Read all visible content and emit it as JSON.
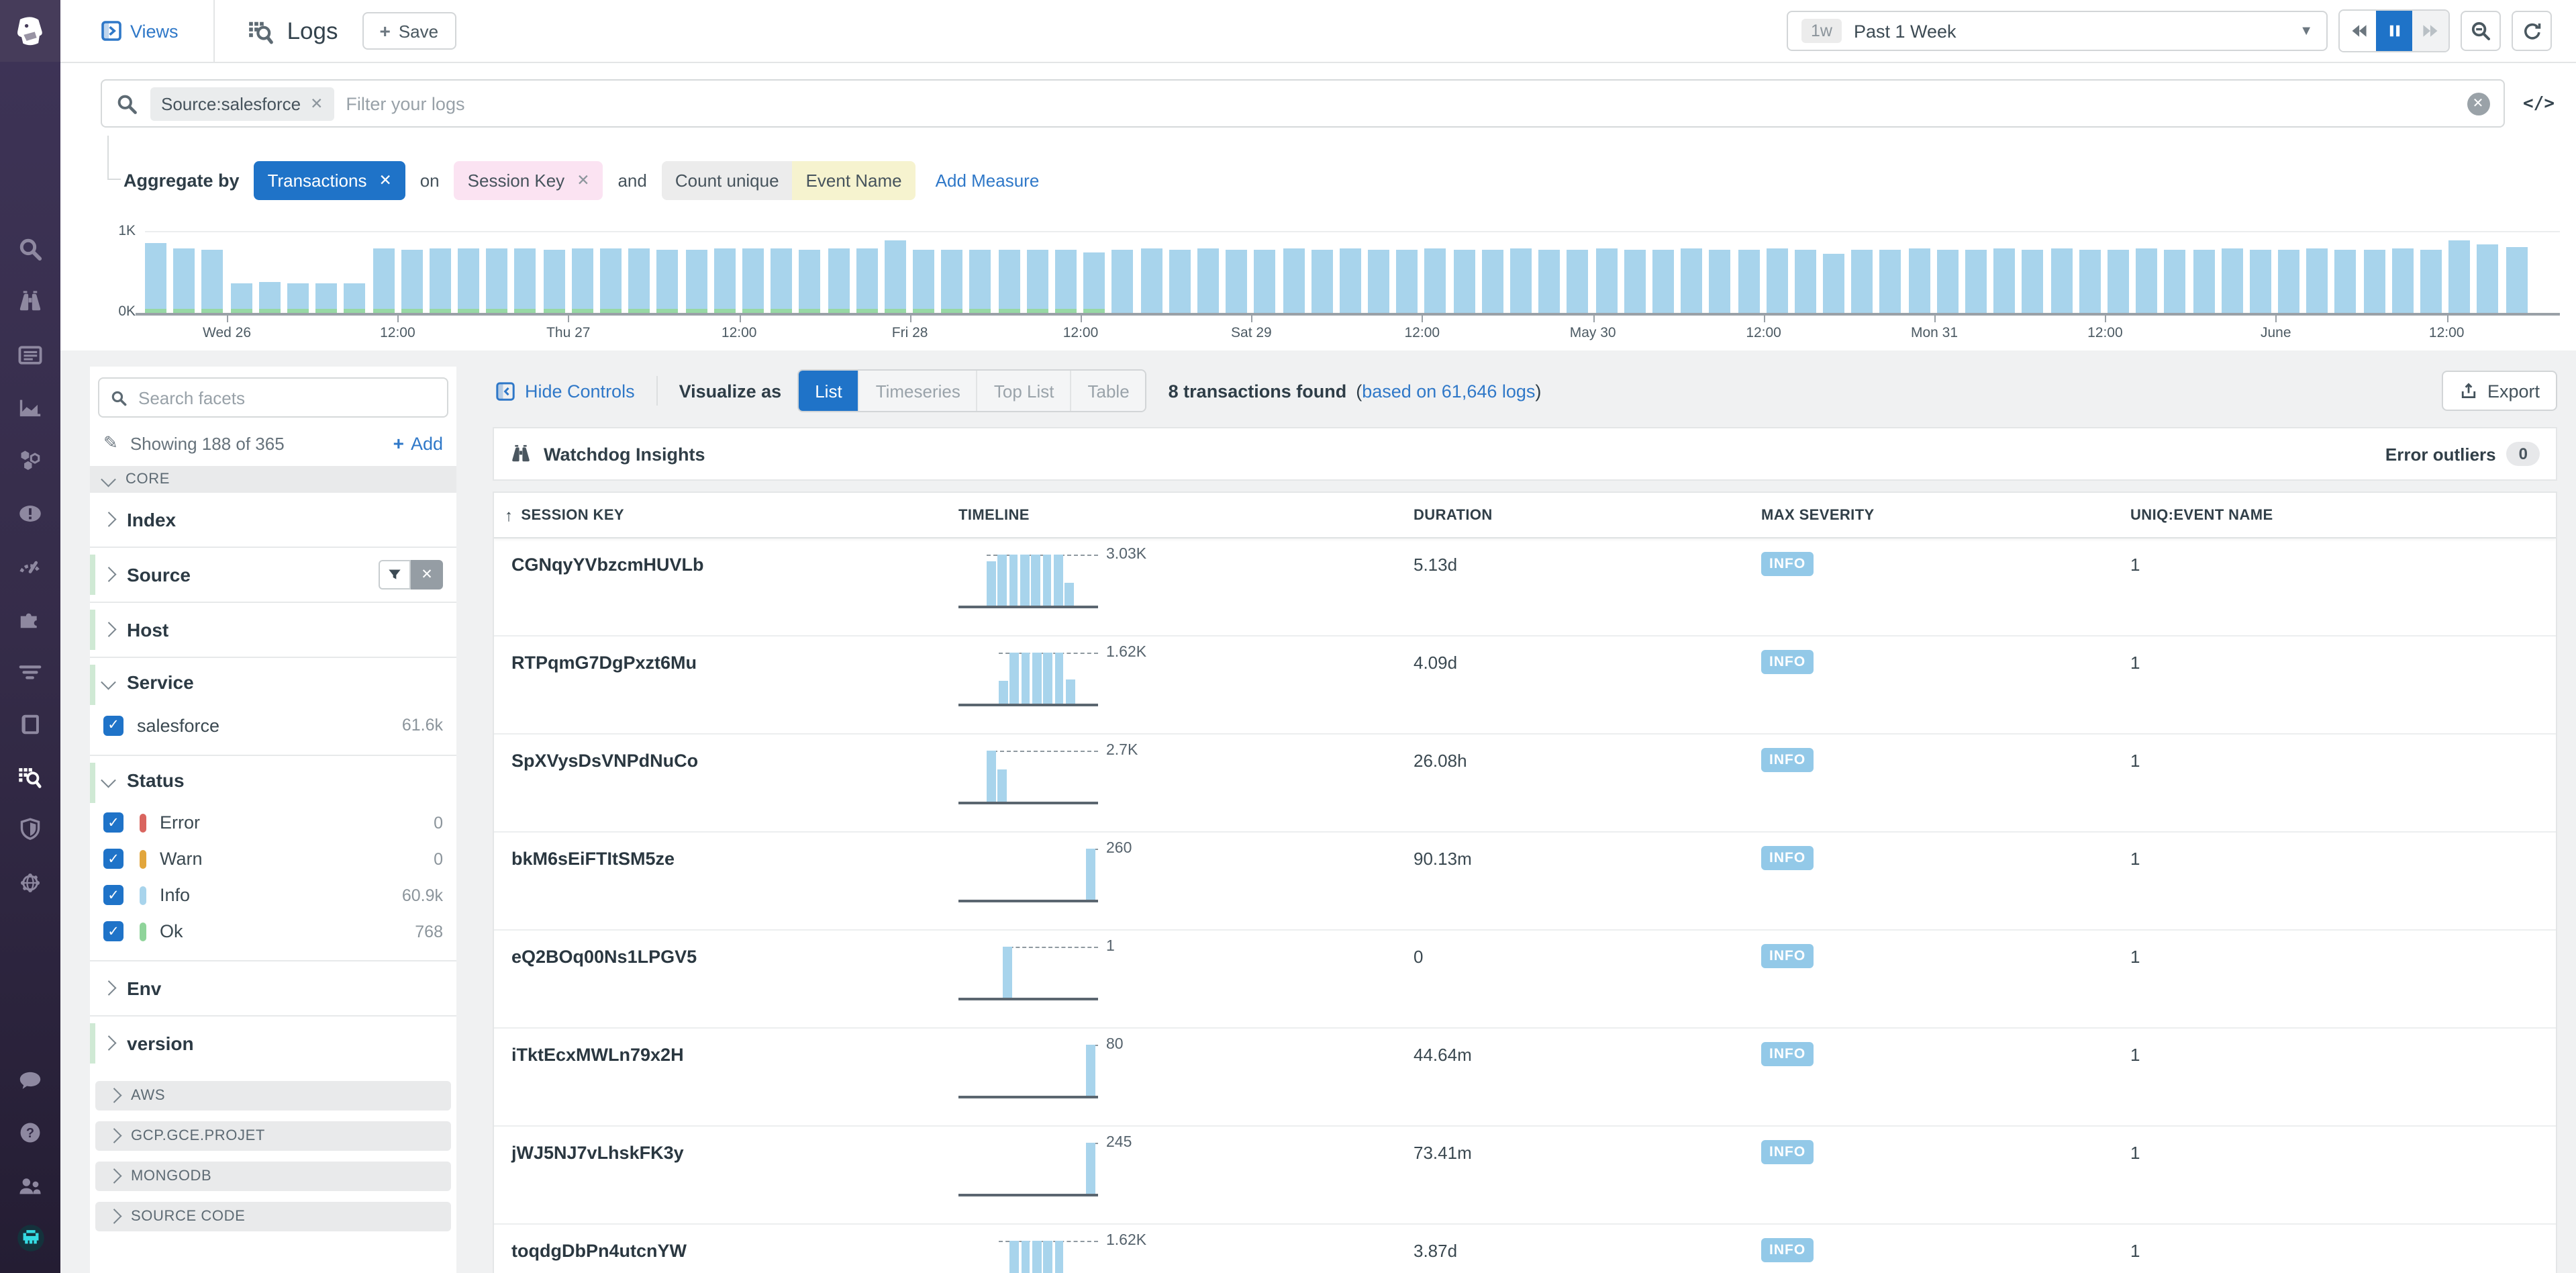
{
  "colors": {
    "accent_blue": "#1f73c8",
    "link_blue": "#2f78c8",
    "bar_blue": "#a8d4ec",
    "ok_green": "#97d8a4",
    "error_red": "#d9655f",
    "warn_orange": "#e2a63c",
    "info_blue": "#a8d4ec",
    "ok_swatch": "#8fd49a",
    "info_badge": "#93c9e8"
  },
  "nav": {
    "top_icons": [
      "search",
      "watchdog",
      "dashboards",
      "metrics",
      "service-map",
      "events",
      "synthetics",
      "integrations",
      "apm-traces",
      "notebooks",
      "logs",
      "security",
      "network"
    ],
    "active": "logs",
    "bottom_icons": [
      "chat",
      "help",
      "users",
      "avatar"
    ]
  },
  "header": {
    "views_label": "Views",
    "page_title": "Logs",
    "save_label": "Save",
    "time_range": {
      "shortcut": "1w",
      "label": "Past 1 Week"
    }
  },
  "search_bar": {
    "filter_chip": "Source:salesforce",
    "placeholder": "Filter your logs"
  },
  "aggregate_row": {
    "label": "Aggregate by",
    "group": "Transactions",
    "on": "on",
    "field": "Session Key",
    "and": "and",
    "measure_toggle": [
      "Count unique",
      "Event Name"
    ],
    "add_measure": "Add Measure"
  },
  "chart_data": {
    "type": "bar",
    "title": "Log volume over past 1 week",
    "ylabel": "",
    "ylim": [
      0,
      1000
    ],
    "ytick_labels": [
      "0K",
      "1K"
    ],
    "x_tick_labels": [
      "Wed 26",
      "12:00",
      "Thu 27",
      "12:00",
      "Fri 28",
      "12:00",
      "Sat 29",
      "12:00",
      "May 30",
      "12:00",
      "Mon 31",
      "12:00",
      "June",
      "12:00"
    ],
    "first_tick_bar_index": 3,
    "tick_every_n_bars": 6,
    "ok_base_until_index": 33,
    "values": [
      850,
      780,
      765,
      360,
      375,
      355,
      355,
      360,
      780,
      778,
      785,
      782,
      790,
      780,
      776,
      780,
      780,
      782,
      778,
      775,
      785,
      780,
      783,
      778,
      780,
      782,
      880,
      775,
      778,
      774,
      776,
      772,
      775,
      745,
      778,
      780,
      776,
      782,
      779,
      775,
      780,
      778,
      781,
      776,
      779,
      782,
      778,
      775,
      780,
      778,
      776,
      781,
      779,
      777,
      780,
      778,
      775,
      782,
      778,
      730,
      779,
      776,
      781,
      778,
      775,
      780,
      777,
      782,
      778,
      776,
      780,
      778,
      775,
      781,
      778,
      776,
      782,
      779,
      777,
      780,
      778,
      890,
      835,
      800
    ]
  },
  "facet_panel": {
    "search_placeholder": "Search facets",
    "showing_text": "Showing 188 of 365",
    "add_label": "Add",
    "groups": [
      {
        "kind": "header",
        "label": "CORE",
        "chevron": "down"
      },
      {
        "kind": "facet",
        "label": "Index",
        "pinned": false
      },
      {
        "kind": "facet",
        "label": "Source",
        "pinned": true,
        "has_controls": true
      },
      {
        "kind": "facet",
        "label": "Host",
        "pinned": true
      },
      {
        "kind": "facet",
        "label": "Service",
        "pinned": true,
        "expanded": true,
        "items": [
          {
            "label": "salesforce",
            "count": "61.6k",
            "checked": true
          }
        ]
      },
      {
        "kind": "facet",
        "label": "Status",
        "pinned": true,
        "expanded": true,
        "items": [
          {
            "label": "Error",
            "count": "0",
            "checked": true,
            "swatch": "#d9655f"
          },
          {
            "label": "Warn",
            "count": "0",
            "checked": true,
            "swatch": "#e2a63c"
          },
          {
            "label": "Info",
            "count": "60.9k",
            "checked": true,
            "swatch": "#a8d4ec"
          },
          {
            "label": "Ok",
            "count": "768",
            "checked": true,
            "swatch": "#8fd49a"
          }
        ]
      },
      {
        "kind": "facet",
        "label": "Env",
        "pinned": false
      },
      {
        "kind": "facet",
        "label": "version",
        "pinned": true
      },
      {
        "kind": "header",
        "label": "AWS",
        "chevron": "right",
        "spaced": true
      },
      {
        "kind": "header",
        "label": "GCP.GCE.PROJET",
        "chevron": "right",
        "spaced": true
      },
      {
        "kind": "header",
        "label": "MONGODB",
        "chevron": "right",
        "spaced": true
      },
      {
        "kind": "header",
        "label": "SOURCE CODE",
        "chevron": "right",
        "spaced": true
      }
    ]
  },
  "controls": {
    "hide_controls": "Hide Controls",
    "visualize_as": "Visualize as",
    "modes": [
      "List",
      "Timeseries",
      "Top List",
      "Table"
    ],
    "active_mode": "List",
    "result_count": "8 transactions found",
    "based_prefix": "(",
    "based_link": "based on 61,646 logs",
    "based_suffix": ")",
    "export_label": "Export"
  },
  "watchdog": {
    "title": "Watchdog Insights",
    "right_label": "Error outliers",
    "right_count": "0"
  },
  "table": {
    "columns": [
      "SESSION KEY",
      "TIMELINE",
      "DURATION",
      "MAX SEVERITY",
      "UNIQ:EVENT NAME"
    ],
    "sort_column": "SESSION KEY",
    "rows": [
      {
        "key": "CGNqyYVbzcmHUVLb",
        "timeline": {
          "value": "3.03K",
          "offset": 21,
          "bars": [
            0.86,
            1,
            1,
            1,
            1,
            1,
            1,
            0.45
          ]
        },
        "duration": "5.13d",
        "max_severity": "INFO",
        "uniq_event_name": "1"
      },
      {
        "key": "RTPqmG7DgPxzt6Mu",
        "timeline": {
          "value": "1.62K",
          "offset": 30,
          "bars": [
            0.45,
            1,
            1,
            1,
            1,
            1,
            0.48
          ]
        },
        "duration": "4.09d",
        "max_severity": "INFO",
        "uniq_event_name": "1"
      },
      {
        "key": "SpXVysDsVNPdNuCo",
        "timeline": {
          "value": "2.7K",
          "offset": 21,
          "bars": [
            1,
            0.62
          ]
        },
        "duration": "26.08h",
        "max_severity": "INFO",
        "uniq_event_name": "1"
      },
      {
        "key": "bkM6sEiFTItSM5ze",
        "timeline": {
          "value": "260",
          "offset": 95,
          "bars": [
            1
          ]
        },
        "duration": "90.13m",
        "max_severity": "INFO",
        "uniq_event_name": "1"
      },
      {
        "key": "eQ2BOq00Ns1LPGV5",
        "timeline": {
          "value": "1",
          "offset": 33,
          "bars": [
            1
          ]
        },
        "duration": "0",
        "max_severity": "INFO",
        "uniq_event_name": "1"
      },
      {
        "key": "iTktEcxMWLn79x2H",
        "timeline": {
          "value": "80",
          "offset": 95,
          "bars": [
            1
          ]
        },
        "duration": "44.64m",
        "max_severity": "INFO",
        "uniq_event_name": "1"
      },
      {
        "key": "jWJ5NJ7vLhskFK3y",
        "timeline": {
          "value": "245",
          "offset": 95,
          "bars": [
            1
          ]
        },
        "duration": "73.41m",
        "max_severity": "INFO",
        "uniq_event_name": "1"
      },
      {
        "key": "toqdgDbPn4utcnYW",
        "timeline": {
          "value": "1.62K",
          "offset": 30,
          "bars": [
            0.35,
            1,
            1,
            1,
            1,
            1
          ]
        },
        "duration": "3.87d",
        "max_severity": "INFO",
        "uniq_event_name": "1"
      }
    ]
  }
}
